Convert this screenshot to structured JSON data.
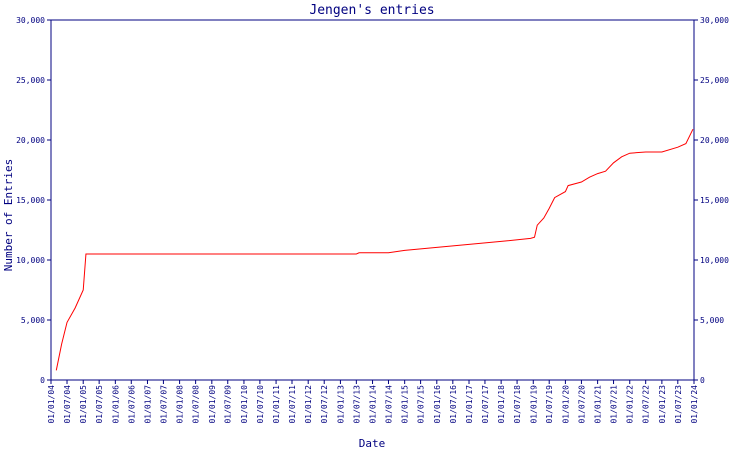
{
  "chart_data": {
    "type": "line",
    "title": "Jengen's entries",
    "x_label": "Date",
    "y_label": "Number of Entries",
    "x": [
      "2004-03-01",
      "2004-05-01",
      "2004-07-01",
      "2004-10-01",
      "2005-01-01",
      "2005-02-01",
      "2005-03-01",
      "2013-07-01",
      "2013-08-01",
      "2014-07-01",
      "2015-01-01",
      "2016-01-01",
      "2017-01-01",
      "2018-01-01",
      "2018-12-01",
      "2019-01-15",
      "2019-02-15",
      "2019-05-01",
      "2019-07-01",
      "2019-09-01",
      "2020-01-01",
      "2020-02-01",
      "2020-07-01",
      "2020-10-01",
      "2021-01-01",
      "2021-04-01",
      "2021-07-01",
      "2021-10-01",
      "2022-01-01",
      "2022-07-01",
      "2023-01-01",
      "2023-07-01",
      "2023-10-01",
      "2023-12-20"
    ],
    "series": [
      {
        "name": "Entries",
        "color": "#ff0000",
        "values": [
          800,
          3000,
          4800,
          6000,
          7500,
          10500,
          10500,
          10500,
          10600,
          10600,
          10800,
          11050,
          11300,
          11550,
          11800,
          11900,
          12900,
          13500,
          14300,
          15200,
          15700,
          16200,
          16500,
          16900,
          17200,
          17400,
          18100,
          18600,
          18900,
          19000,
          19000,
          19400,
          19700,
          20900
        ]
      }
    ],
    "xlim": [
      "2004-01-01",
      "2024-01-01"
    ],
    "xticks": [
      {
        "value": "2004-01-01",
        "label": "01/01/04"
      },
      {
        "value": "2004-07-01",
        "label": "01/07/04"
      },
      {
        "value": "2005-01-01",
        "label": "01/01/05"
      },
      {
        "value": "2005-07-01",
        "label": "01/07/05"
      },
      {
        "value": "2006-01-01",
        "label": "01/01/06"
      },
      {
        "value": "2006-07-01",
        "label": "01/07/06"
      },
      {
        "value": "2007-01-01",
        "label": "01/01/07"
      },
      {
        "value": "2007-07-01",
        "label": "01/07/07"
      },
      {
        "value": "2008-01-01",
        "label": "01/01/08"
      },
      {
        "value": "2008-07-01",
        "label": "01/07/08"
      },
      {
        "value": "2009-01-01",
        "label": "01/01/09"
      },
      {
        "value": "2009-07-01",
        "label": "01/07/09"
      },
      {
        "value": "2010-01-01",
        "label": "01/01/10"
      },
      {
        "value": "2010-07-01",
        "label": "01/07/10"
      },
      {
        "value": "2011-01-01",
        "label": "01/01/11"
      },
      {
        "value": "2011-07-01",
        "label": "01/07/11"
      },
      {
        "value": "2012-01-01",
        "label": "01/01/12"
      },
      {
        "value": "2012-07-01",
        "label": "01/07/12"
      },
      {
        "value": "2013-01-01",
        "label": "01/01/13"
      },
      {
        "value": "2013-07-01",
        "label": "01/07/13"
      },
      {
        "value": "2014-01-01",
        "label": "01/01/14"
      },
      {
        "value": "2014-07-01",
        "label": "01/07/14"
      },
      {
        "value": "2015-01-01",
        "label": "01/01/15"
      },
      {
        "value": "2015-07-01",
        "label": "01/07/15"
      },
      {
        "value": "2016-01-01",
        "label": "01/01/16"
      },
      {
        "value": "2016-07-01",
        "label": "01/07/16"
      },
      {
        "value": "2017-01-01",
        "label": "01/01/17"
      },
      {
        "value": "2017-07-01",
        "label": "01/07/17"
      },
      {
        "value": "2018-01-01",
        "label": "01/01/18"
      },
      {
        "value": "2018-07-01",
        "label": "01/07/18"
      },
      {
        "value": "2019-01-01",
        "label": "01/01/19"
      },
      {
        "value": "2019-07-01",
        "label": "01/07/19"
      },
      {
        "value": "2020-01-01",
        "label": "01/01/20"
      },
      {
        "value": "2020-07-01",
        "label": "01/07/20"
      },
      {
        "value": "2021-01-01",
        "label": "01/01/21"
      },
      {
        "value": "2021-07-01",
        "label": "01/07/21"
      },
      {
        "value": "2022-01-01",
        "label": "01/01/22"
      },
      {
        "value": "2022-07-01",
        "label": "01/07/22"
      },
      {
        "value": "2023-01-01",
        "label": "01/01/23"
      },
      {
        "value": "2023-07-01",
        "label": "01/07/23"
      },
      {
        "value": "2024-01-01",
        "label": "01/01/24"
      }
    ],
    "ylim": [
      0,
      30000
    ],
    "yticks": [
      0,
      {
        "value": 5000,
        "label": "5,000"
      },
      {
        "value": 10000,
        "label": "10,000"
      },
      {
        "value": 15000,
        "label": "15,000"
      },
      {
        "value": 20000,
        "label": "20,000"
      },
      {
        "value": 25000,
        "label": "25,000"
      },
      {
        "value": 30000,
        "label": "30,000"
      }
    ],
    "y2lim": [
      0,
      30000
    ],
    "y2ticks": [
      0,
      {
        "value": 5000,
        "label": "5,000"
      },
      {
        "value": 10000,
        "label": "10,000"
      },
      {
        "value": 15000,
        "label": "15,000"
      },
      {
        "value": 20000,
        "label": "20,000"
      },
      {
        "value": 25000,
        "label": "25,000"
      },
      {
        "value": 30000,
        "label": "30,000"
      }
    ],
    "axis_color": "#000080"
  }
}
